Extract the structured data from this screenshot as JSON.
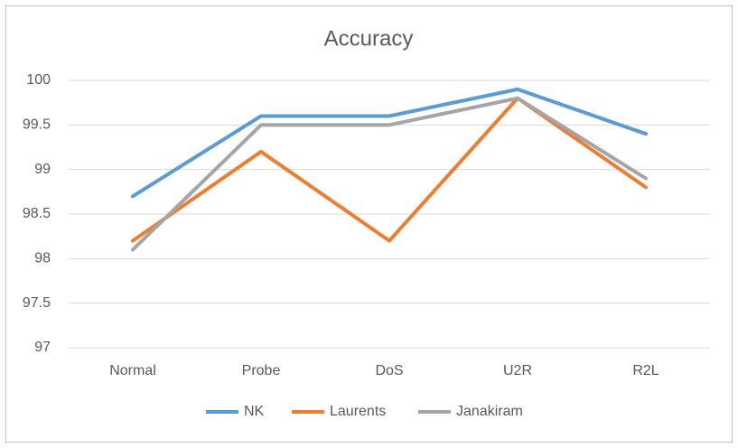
{
  "chart_data": {
    "type": "line",
    "title": "Accuracy",
    "categories": [
      "Normal",
      "Probe",
      "DoS",
      "U2R",
      "R2L"
    ],
    "series": [
      {
        "name": "NK",
        "color": "#5b9bd5",
        "values": [
          98.7,
          99.6,
          99.6,
          99.9,
          99.4
        ]
      },
      {
        "name": "Laurents",
        "color": "#ed7d31",
        "values": [
          98.2,
          99.2,
          98.2,
          99.8,
          98.8
        ]
      },
      {
        "name": "Janakiram",
        "color": "#a5a5a5",
        "values": [
          98.1,
          99.5,
          99.5,
          99.8,
          98.9
        ]
      }
    ],
    "ylim": [
      97,
      100
    ],
    "yticks": [
      97,
      97.5,
      98,
      98.5,
      99,
      99.5,
      100
    ],
    "grid": true,
    "legend": "bottom"
  }
}
